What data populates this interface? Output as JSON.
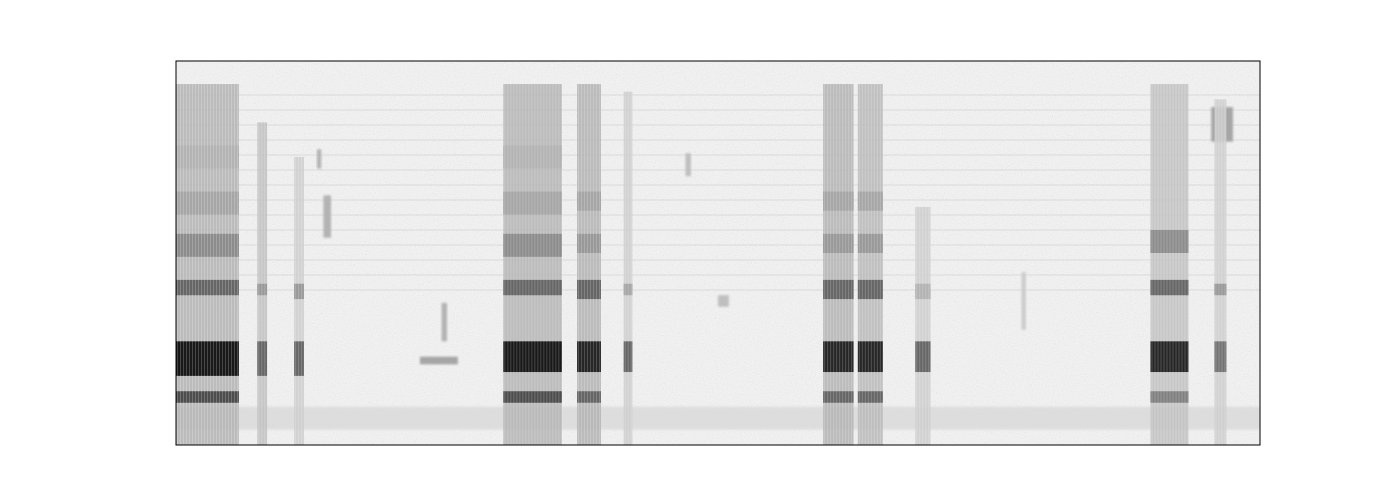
{
  "chart_data": {
    "type": "spectrogram",
    "tick_labels": false,
    "xlim": [
      0,
      100
    ],
    "ylim": [
      0,
      100
    ],
    "noise_band": {
      "low": 4,
      "high": 10,
      "level": 0.15
    },
    "calls": [
      {
        "start": 0,
        "end": 5.8,
        "top": 94,
        "level": 0.3,
        "bands": [
          {
            "low": 11,
            "high": 14,
            "level": 0.7
          },
          {
            "low": 18,
            "high": 27,
            "level": 0.9
          },
          {
            "low": 39,
            "high": 43,
            "level": 0.6
          },
          {
            "low": 49,
            "high": 55,
            "level": 0.45
          },
          {
            "low": 60,
            "high": 66,
            "level": 0.35
          },
          {
            "low": 72,
            "high": 78,
            "level": 0.3
          }
        ]
      },
      {
        "start": 7.5,
        "end": 8.4,
        "top": 84,
        "level": 0.25,
        "bands": [
          {
            "low": 18,
            "high": 27,
            "level": 0.6
          },
          {
            "low": 39,
            "high": 42,
            "level": 0.4
          }
        ]
      },
      {
        "start": 10.9,
        "end": 11.8,
        "top": 75,
        "level": 0.2,
        "bands": [
          {
            "low": 18,
            "high": 27,
            "level": 0.6
          },
          {
            "low": 38,
            "high": 42,
            "level": 0.4
          }
        ]
      },
      {
        "start": 30.2,
        "end": 35.6,
        "top": 94,
        "level": 0.3,
        "bands": [
          {
            "low": 11,
            "high": 14,
            "level": 0.7
          },
          {
            "low": 19,
            "high": 27,
            "level": 0.9
          },
          {
            "low": 39,
            "high": 43,
            "level": 0.6
          },
          {
            "low": 49,
            "high": 55,
            "level": 0.45
          },
          {
            "low": 60,
            "high": 66,
            "level": 0.35
          },
          {
            "low": 72,
            "high": 78,
            "level": 0.3
          }
        ]
      },
      {
        "start": 37.0,
        "end": 39.2,
        "top": 94,
        "level": 0.3,
        "bands": [
          {
            "low": 11,
            "high": 14,
            "level": 0.6
          },
          {
            "low": 19,
            "high": 27,
            "level": 0.85
          },
          {
            "low": 38,
            "high": 43,
            "level": 0.6
          },
          {
            "low": 50,
            "high": 55,
            "level": 0.4
          },
          {
            "low": 61,
            "high": 66,
            "level": 0.35
          }
        ]
      },
      {
        "start": 41.3,
        "end": 42.1,
        "top": 92,
        "level": 0.2,
        "bands": [
          {
            "low": 19,
            "high": 27,
            "level": 0.6
          },
          {
            "low": 39,
            "high": 42,
            "level": 0.35
          }
        ]
      },
      {
        "start": 59.7,
        "end": 62.5,
        "top": 94,
        "level": 0.3,
        "bands": [
          {
            "low": 11,
            "high": 14,
            "level": 0.6
          },
          {
            "low": 19,
            "high": 27,
            "level": 0.85
          },
          {
            "low": 38,
            "high": 43,
            "level": 0.6
          },
          {
            "low": 50,
            "high": 55,
            "level": 0.4
          },
          {
            "low": 61,
            "high": 66,
            "level": 0.35
          }
        ]
      },
      {
        "start": 62.9,
        "end": 65.2,
        "top": 94,
        "level": 0.28,
        "bands": [
          {
            "low": 11,
            "high": 14,
            "level": 0.6
          },
          {
            "low": 19,
            "high": 27,
            "level": 0.85
          },
          {
            "low": 38,
            "high": 43,
            "level": 0.6
          },
          {
            "low": 50,
            "high": 55,
            "level": 0.4
          },
          {
            "low": 61,
            "high": 66,
            "level": 0.35
          }
        ]
      },
      {
        "start": 68.2,
        "end": 69.6,
        "top": 62,
        "level": 0.2,
        "bands": [
          {
            "low": 19,
            "high": 27,
            "level": 0.6
          },
          {
            "low": 38,
            "high": 42,
            "level": 0.3
          }
        ]
      },
      {
        "start": 89.9,
        "end": 93.4,
        "top": 94,
        "level": 0.25,
        "bands": [
          {
            "low": 11,
            "high": 14,
            "level": 0.5
          },
          {
            "low": 19,
            "high": 27,
            "level": 0.85
          },
          {
            "low": 39,
            "high": 43,
            "level": 0.6
          },
          {
            "low": 50,
            "high": 56,
            "level": 0.45
          }
        ]
      },
      {
        "start": 95.8,
        "end": 96.9,
        "top": 90,
        "level": 0.2,
        "bands": [
          {
            "low": 19,
            "high": 27,
            "level": 0.55
          },
          {
            "low": 39,
            "high": 42,
            "level": 0.4
          }
        ]
      }
    ],
    "notes": [
      {
        "start": 13.0,
        "end": 13.4,
        "low": 72,
        "high": 77,
        "level": 0.3
      },
      {
        "start": 13.6,
        "end": 14.3,
        "low": 54,
        "high": 65,
        "level": 0.3
      },
      {
        "start": 22.5,
        "end": 26.0,
        "low": 21,
        "high": 23,
        "level": 0.35
      },
      {
        "start": 24.5,
        "end": 25.0,
        "low": 27,
        "high": 37,
        "level": 0.3
      },
      {
        "start": 47.0,
        "end": 47.5,
        "low": 70,
        "high": 76,
        "level": 0.25
      },
      {
        "start": 50.0,
        "end": 51.0,
        "low": 36,
        "high": 39,
        "level": 0.25
      },
      {
        "start": 78.0,
        "end": 78.4,
        "low": 30,
        "high": 45,
        "level": 0.2
      },
      {
        "start": 95.5,
        "end": 97.5,
        "low": 79,
        "high": 88,
        "level": 0.35
      }
    ]
  }
}
